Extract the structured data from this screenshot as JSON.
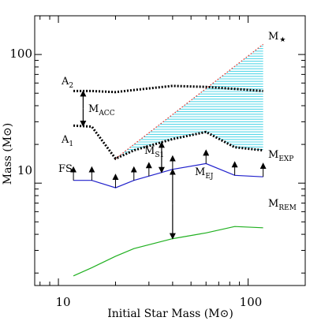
{
  "chart_data": {
    "type": "line",
    "xlabel": "Initial Star Mass (M⊙)",
    "ylabel": "Mass (M⊙)",
    "xscale": "log",
    "yscale": "log",
    "xlim": [
      7.5,
      200
    ],
    "ylim": [
      1.6,
      200
    ],
    "grid": false,
    "xticks": [
      {
        "value": 10,
        "label": "10"
      },
      {
        "value": 100,
        "label": "100"
      }
    ],
    "yticks": [
      {
        "value": 10,
        "label": "10"
      },
      {
        "value": 100,
        "label": "100"
      }
    ],
    "series": [
      {
        "name": "M★",
        "color": "#e8302a",
        "style": "dotted",
        "x": [
          20,
          120
        ],
        "y": [
          15.5,
          120
        ]
      },
      {
        "name": "A2",
        "color": "#000000",
        "style": "thick-dotted",
        "x": [
          12,
          15,
          20,
          25,
          40,
          60,
          85,
          120
        ],
        "y": [
          52,
          52,
          51,
          53,
          57,
          56,
          54,
          52
        ]
      },
      {
        "name": "A1",
        "color": "#000000",
        "style": "thick-dotted",
        "x": [
          12,
          15,
          20,
          25,
          40,
          60,
          85,
          120
        ],
        "y": [
          28,
          27.5,
          15.5,
          18,
          22,
          25,
          19,
          18
        ]
      },
      {
        "name": "M_EXP",
        "color": "#2020cc",
        "style": "solid",
        "x": [
          12,
          15,
          20,
          25,
          40,
          60,
          85,
          120
        ],
        "y": [
          10.5,
          10.5,
          9.2,
          10.5,
          12.8,
          14.2,
          11.5,
          11.2
        ]
      },
      {
        "name": "M_REM",
        "color": "#20b020",
        "style": "solid",
        "x": [
          12,
          15,
          20,
          25,
          40,
          60,
          85,
          120
        ],
        "y": [
          1.9,
          2.2,
          2.7,
          3.1,
          3.7,
          4.1,
          4.6,
          4.5
        ]
      }
    ],
    "shaded_region": {
      "between": [
        "M★",
        "A1"
      ],
      "fill": "cyan-hatched"
    },
    "arrows": {
      "fs_x": [
        12,
        15,
        20,
        25,
        30,
        40,
        60,
        85,
        120
      ],
      "acc_x": 13.5,
      "s1_x": 35,
      "ej_x": 40
    }
  },
  "labels": {
    "mstar": {
      "main": "M",
      "star": "★"
    },
    "a2": {
      "main": "A",
      "sub": "2"
    },
    "a1": {
      "main": "A",
      "sub": "1"
    },
    "macc": {
      "main": "M",
      "sub": "ACC"
    },
    "ms1": {
      "main": "M",
      "sub": "S1"
    },
    "mej": {
      "main": "M",
      "sub": "EJ"
    },
    "mexp": {
      "main": "M",
      "sub": "EXP"
    },
    "mrem": {
      "main": "M",
      "sub": "REM"
    },
    "fs": "FS"
  }
}
